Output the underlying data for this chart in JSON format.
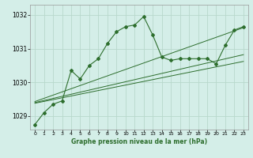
{
  "bg_color": "#d4eee8",
  "grid_color": "#b8d8cc",
  "line_color": "#2d6e2d",
  "title": "Graphe pression niveau de la mer (hPa)",
  "xlim": [
    -0.5,
    23.5
  ],
  "ylim": [
    1028.6,
    1032.3
  ],
  "yticks": [
    1029,
    1030,
    1031,
    1032
  ],
  "xticks": [
    0,
    1,
    2,
    3,
    4,
    5,
    6,
    7,
    8,
    9,
    10,
    11,
    12,
    13,
    14,
    15,
    16,
    17,
    18,
    19,
    20,
    21,
    22,
    23
  ],
  "main_x": [
    0,
    1,
    2,
    3,
    4,
    5,
    6,
    7,
    8,
    9,
    10,
    11,
    12,
    13,
    14,
    15,
    16,
    17,
    18,
    19,
    20,
    21,
    22,
    23
  ],
  "main_y": [
    1028.75,
    1029.1,
    1029.35,
    1029.45,
    1030.35,
    1030.1,
    1030.5,
    1030.7,
    1031.15,
    1031.5,
    1031.65,
    1031.7,
    1031.95,
    1031.4,
    1030.75,
    1030.65,
    1030.7,
    1030.7,
    1030.7,
    1030.7,
    1030.55,
    1031.1,
    1031.55,
    1031.65
  ],
  "trend1_x": [
    0,
    23
  ],
  "trend1_y": [
    1029.38,
    1030.62
  ],
  "trend2_x": [
    0,
    23
  ],
  "trend2_y": [
    1029.4,
    1030.82
  ],
  "trend3_x": [
    0,
    23
  ],
  "trend3_y": [
    1029.43,
    1031.62
  ]
}
